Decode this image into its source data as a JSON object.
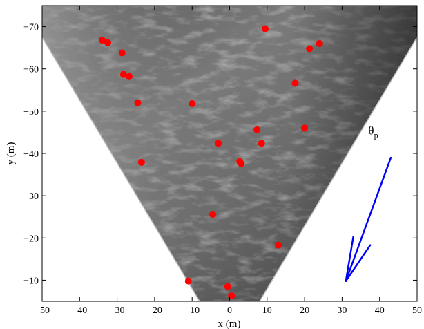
{
  "chart_data": {
    "type": "scatter",
    "title": "",
    "xlabel": "x (m)",
    "ylabel": "y (m)",
    "xlim": [
      -50,
      50
    ],
    "ylim": [
      -75,
      -5
    ],
    "y_axis_reversed": true,
    "x_ticks": [
      "−50",
      "−40",
      "−30",
      "−20",
      "−10",
      "0",
      "10",
      "20",
      "30",
      "40",
      "50"
    ],
    "x_tick_values": [
      -50,
      -40,
      -30,
      -20,
      -10,
      0,
      10,
      20,
      30,
      40,
      50
    ],
    "y_ticks": [
      "−70",
      "−60",
      "−50",
      "−40",
      "−30",
      "−20",
      "−10"
    ],
    "y_tick_values": [
      -70,
      -60,
      -50,
      -40,
      -30,
      -20,
      -10
    ],
    "grid": false,
    "background": "grayscale sea-surface camera image in a wedge-shaped field of view",
    "marker_color": "#ff0000",
    "points": [
      {
        "x": 9.5,
        "y": -69.5
      },
      {
        "x": -34,
        "y": -66.8
      },
      {
        "x": -32.5,
        "y": -66.2
      },
      {
        "x": 24,
        "y": -66
      },
      {
        "x": 21.3,
        "y": -64.8
      },
      {
        "x": -28.7,
        "y": -63.8
      },
      {
        "x": -28.3,
        "y": -58.7
      },
      {
        "x": -26.8,
        "y": -58.2
      },
      {
        "x": 17.5,
        "y": -56.6
      },
      {
        "x": -24.5,
        "y": -52
      },
      {
        "x": -10,
        "y": -51.8
      },
      {
        "x": 7.3,
        "y": -45.6
      },
      {
        "x": 20,
        "y": -46
      },
      {
        "x": -3,
        "y": -42.4
      },
      {
        "x": 8.5,
        "y": -42.4
      },
      {
        "x": 2.7,
        "y": -38.1
      },
      {
        "x": 3.1,
        "y": -37.6
      },
      {
        "x": -23.5,
        "y": -37.9
      },
      {
        "x": -4.5,
        "y": -25.6
      },
      {
        "x": 13,
        "y": -18.3
      },
      {
        "x": -11,
        "y": -9.8
      },
      {
        "x": -0.5,
        "y": -8.5
      },
      {
        "x": 0.5,
        "y": -6.3
      }
    ],
    "arrow": {
      "color": "#0000ff",
      "tail": {
        "x": 43,
        "y": -39
      },
      "head": {
        "x": 31,
        "y": -9.8
      },
      "barb1": {
        "x": 33,
        "y": -20.3
      },
      "barb2": {
        "x": 37.5,
        "y": -18.3
      }
    },
    "annotation": {
      "text": "θ",
      "subscript": "p",
      "x": 37,
      "y": -44.5
    }
  }
}
